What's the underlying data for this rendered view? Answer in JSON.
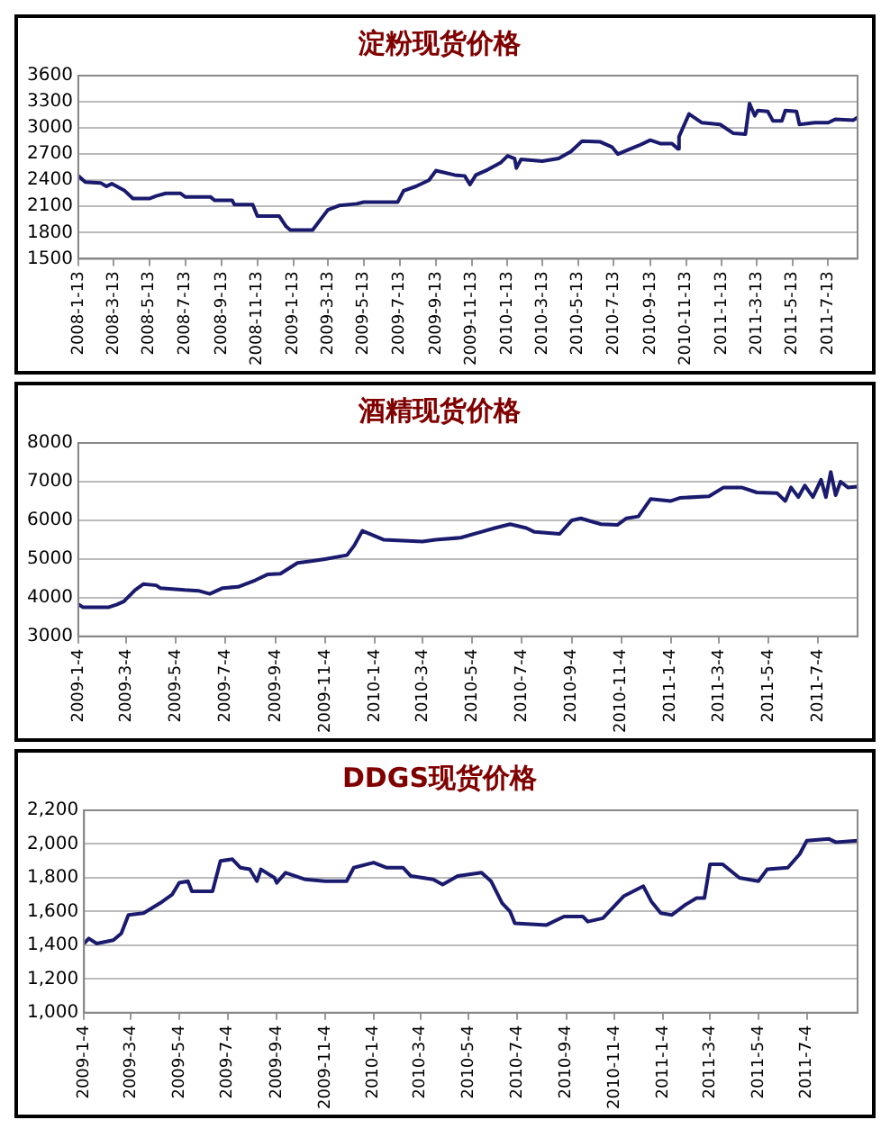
{
  "chart_data": [
    {
      "type": "line",
      "title": "淀粉现货价格",
      "grid": "y",
      "line_style": "solid",
      "legend": false,
      "xlim": [
        "2008-01-13",
        "2011-09-01"
      ],
      "ylim": [
        1500,
        3600
      ],
      "yticks": [
        1500,
        1800,
        2100,
        2400,
        2700,
        3000,
        3300,
        3600
      ],
      "xticks": [
        {
          "value": "2008-01-13",
          "label": "2008-1-13"
        },
        {
          "value": "2008-03-13",
          "label": "2008-3-13"
        },
        {
          "value": "2008-05-13",
          "label": "2008-5-13"
        },
        {
          "value": "2008-07-13",
          "label": "2008-7-13"
        },
        {
          "value": "2008-09-13",
          "label": "2008-9-13"
        },
        {
          "value": "2008-11-13",
          "label": "2008-11-13"
        },
        {
          "value": "2009-01-13",
          "label": "2009-1-13"
        },
        {
          "value": "2009-03-13",
          "label": "2009-3-13"
        },
        {
          "value": "2009-05-13",
          "label": "2009-5-13"
        },
        {
          "value": "2009-07-13",
          "label": "2009-7-13"
        },
        {
          "value": "2009-09-13",
          "label": "2009-9-13"
        },
        {
          "value": "2009-11-13",
          "label": "2009-11-13"
        },
        {
          "value": "2010-01-13",
          "label": "2010-1-13"
        },
        {
          "value": "2010-03-13",
          "label": "2010-3-13"
        },
        {
          "value": "2010-05-13",
          "label": "2010-5-13"
        },
        {
          "value": "2010-07-13",
          "label": "2010-7-13"
        },
        {
          "value": "2010-09-13",
          "label": "2010-9-13"
        },
        {
          "value": "2010-11-13",
          "label": "2010-11-13"
        },
        {
          "value": "2011-01-13",
          "label": "2011-1-13"
        },
        {
          "value": "2011-03-13",
          "label": "2011-3-13"
        },
        {
          "value": "2011-05-13",
          "label": "2011-5-13"
        },
        {
          "value": "2011-07-13",
          "label": "2011-7-13"
        }
      ],
      "series": [
        {
          "color": "#1a1a6e",
          "x": [
            "2008-01-13",
            "2008-01-25",
            "2008-02-20",
            "2008-03-01",
            "2008-03-10",
            "2008-04-01",
            "2008-04-15",
            "2008-05-13",
            "2008-05-25",
            "2008-06-10",
            "2008-07-05",
            "2008-07-13",
            "2008-08-25",
            "2008-09-01",
            "2008-10-01",
            "2008-10-05",
            "2008-11-05",
            "2008-11-13",
            "2008-12-20",
            "2009-01-01",
            "2009-01-08",
            "2009-02-15",
            "2009-03-13",
            "2009-04-01",
            "2009-05-01",
            "2009-05-13",
            "2009-07-10",
            "2009-07-20",
            "2009-08-10",
            "2009-09-01",
            "2009-09-13",
            "2009-10-15",
            "2009-11-01",
            "2009-11-10",
            "2009-11-20",
            "2009-12-10",
            "2010-01-01",
            "2010-01-13",
            "2010-01-25",
            "2010-01-28",
            "2010-02-05",
            "2010-03-13",
            "2010-04-10",
            "2010-05-01",
            "2010-05-20",
            "2010-06-20",
            "2010-07-10",
            "2010-07-20",
            "2010-08-10",
            "2010-08-25",
            "2010-09-13",
            "2010-10-01",
            "2010-10-20",
            "2010-10-30",
            "2010-11-01",
            "2010-11-18",
            "2010-12-10",
            "2011-01-10",
            "2011-02-01",
            "2011-02-22",
            "2011-03-01",
            "2011-03-10",
            "2011-03-15",
            "2011-04-01",
            "2011-04-10",
            "2011-04-25",
            "2011-05-01",
            "2011-05-20",
            "2011-05-25",
            "2011-06-20",
            "2011-07-13",
            "2011-07-25",
            "2011-08-25",
            "2011-09-01"
          ],
          "values": [
            2450,
            2380,
            2370,
            2330,
            2360,
            2280,
            2190,
            2190,
            2220,
            2250,
            2250,
            2210,
            2210,
            2170,
            2170,
            2120,
            2120,
            1990,
            1990,
            1870,
            1830,
            1830,
            2060,
            2110,
            2130,
            2150,
            2150,
            2280,
            2330,
            2400,
            2510,
            2460,
            2450,
            2350,
            2460,
            2520,
            2600,
            2680,
            2650,
            2540,
            2640,
            2620,
            2650,
            2730,
            2850,
            2840,
            2780,
            2700,
            2760,
            2800,
            2860,
            2820,
            2820,
            2760,
            2900,
            3160,
            3060,
            3040,
            2940,
            2930,
            3280,
            3140,
            3200,
            3190,
            3080,
            3080,
            3200,
            3190,
            3040,
            3060,
            3060,
            3100,
            3090,
            3120
          ]
        }
      ]
    },
    {
      "type": "line",
      "title": "酒精现货价格",
      "grid": "y",
      "line_style": "solid",
      "legend": false,
      "xlim": [
        "2009-01-04",
        "2011-08-22"
      ],
      "ylim": [
        3000,
        8000
      ],
      "yticks": [
        3000,
        4000,
        5000,
        6000,
        7000,
        8000
      ],
      "xticks": [
        {
          "value": "2009-01-04",
          "label": "2009-1-4"
        },
        {
          "value": "2009-03-04",
          "label": "2009-3-4"
        },
        {
          "value": "2009-05-04",
          "label": "2009-5-4"
        },
        {
          "value": "2009-07-04",
          "label": "2009-7-4"
        },
        {
          "value": "2009-09-04",
          "label": "2009-9-4"
        },
        {
          "value": "2009-11-04",
          "label": "2009-11-4"
        },
        {
          "value": "2010-01-04",
          "label": "2010-1-4"
        },
        {
          "value": "2010-03-04",
          "label": "2010-3-4"
        },
        {
          "value": "2010-05-04",
          "label": "2010-5-4"
        },
        {
          "value": "2010-07-04",
          "label": "2010-7-4"
        },
        {
          "value": "2010-09-04",
          "label": "2010-9-4"
        },
        {
          "value": "2010-11-04",
          "label": "2010-11-4"
        },
        {
          "value": "2011-01-04",
          "label": "2011-1-4"
        },
        {
          "value": "2011-03-04",
          "label": "2011-3-4"
        },
        {
          "value": "2011-05-04",
          "label": "2011-5-4"
        },
        {
          "value": "2011-07-04",
          "label": "2011-7-4"
        }
      ],
      "series": [
        {
          "color": "#1a1a6e",
          "x": [
            "2009-01-04",
            "2009-01-10",
            "2009-02-10",
            "2009-02-20",
            "2009-03-01",
            "2009-03-15",
            "2009-03-25",
            "2009-04-10",
            "2009-04-15",
            "2009-05-15",
            "2009-06-01",
            "2009-06-15",
            "2009-07-01",
            "2009-07-20",
            "2009-08-10",
            "2009-08-25",
            "2009-09-10",
            "2009-10-01",
            "2009-10-20",
            "2009-11-04",
            "2009-12-01",
            "2009-12-10",
            "2009-12-20",
            "2010-01-15",
            "2010-03-04",
            "2010-03-20",
            "2010-04-20",
            "2010-05-15",
            "2010-06-01",
            "2010-06-20",
            "2010-07-10",
            "2010-07-20",
            "2010-08-20",
            "2010-09-04",
            "2010-09-15",
            "2010-10-10",
            "2010-10-30",
            "2010-11-10",
            "2010-11-25",
            "2010-12-10",
            "2011-01-04",
            "2011-01-15",
            "2011-02-20",
            "2011-03-10",
            "2011-04-01",
            "2011-04-20",
            "2011-05-15",
            "2011-05-25",
            "2011-06-01",
            "2011-06-10",
            "2011-06-18",
            "2011-06-28",
            "2011-07-08",
            "2011-07-14",
            "2011-07-20",
            "2011-07-26",
            "2011-08-01",
            "2011-08-10",
            "2011-08-22"
          ],
          "values": [
            3830,
            3750,
            3750,
            3820,
            3900,
            4200,
            4350,
            4320,
            4250,
            4200,
            4180,
            4100,
            4250,
            4280,
            4450,
            4600,
            4620,
            4900,
            4950,
            5000,
            5100,
            5350,
            5730,
            5500,
            5450,
            5500,
            5550,
            5700,
            5800,
            5900,
            5800,
            5700,
            5650,
            6000,
            6050,
            5900,
            5880,
            6050,
            6100,
            6550,
            6500,
            6580,
            6620,
            6850,
            6850,
            6720,
            6700,
            6500,
            6850,
            6600,
            6900,
            6600,
            7050,
            6600,
            7250,
            6650,
            7000,
            6850,
            6870
          ]
        }
      ]
    },
    {
      "type": "line",
      "title": "DDGS现货价格",
      "grid": "y",
      "line_style": "solid",
      "legend": false,
      "xlim": [
        "2009-01-04",
        "2011-09-06"
      ],
      "ylim": [
        1000,
        2200
      ],
      "yticks": [
        {
          "value": 1000,
          "label": "1,000"
        },
        {
          "value": 1200,
          "label": "1,200"
        },
        {
          "value": 1400,
          "label": "1,400"
        },
        {
          "value": 1600,
          "label": "1,600"
        },
        {
          "value": 1800,
          "label": "1,800"
        },
        {
          "value": 2000,
          "label": "2,000"
        },
        {
          "value": 2200,
          "label": "2,200"
        }
      ],
      "xticks": [
        {
          "value": "2009-01-04",
          "label": "2009-1-4"
        },
        {
          "value": "2009-03-04",
          "label": "2009-3-4"
        },
        {
          "value": "2009-05-04",
          "label": "2009-5-4"
        },
        {
          "value": "2009-07-04",
          "label": "2009-7-4"
        },
        {
          "value": "2009-09-04",
          "label": "2009-9-4"
        },
        {
          "value": "2009-11-04",
          "label": "2009-11-4"
        },
        {
          "value": "2010-01-04",
          "label": "2010-1-4"
        },
        {
          "value": "2010-03-04",
          "label": "2010-3-4"
        },
        {
          "value": "2010-05-04",
          "label": "2010-5-4"
        },
        {
          "value": "2010-07-04",
          "label": "2010-7-4"
        },
        {
          "value": "2010-09-04",
          "label": "2010-9-4"
        },
        {
          "value": "2010-11-04",
          "label": "2010-11-4"
        },
        {
          "value": "2011-01-04",
          "label": "2011-1-4"
        },
        {
          "value": "2011-03-04",
          "label": "2011-3-4"
        },
        {
          "value": "2011-05-04",
          "label": "2011-5-4"
        },
        {
          "value": "2011-07-04",
          "label": "2011-7-4"
        }
      ],
      "series": [
        {
          "color": "#1a1a6e",
          "x": [
            "2009-01-04",
            "2009-01-10",
            "2009-01-20",
            "2009-02-10",
            "2009-02-20",
            "2009-03-01",
            "2009-03-20",
            "2009-04-10",
            "2009-04-25",
            "2009-05-04",
            "2009-05-15",
            "2009-05-20",
            "2009-06-15",
            "2009-06-25",
            "2009-07-10",
            "2009-07-20",
            "2009-08-01",
            "2009-08-10",
            "2009-08-15",
            "2009-09-01",
            "2009-09-04",
            "2009-09-15",
            "2009-10-10",
            "2009-11-04",
            "2009-12-01",
            "2009-12-10",
            "2010-01-04",
            "2010-01-20",
            "2010-02-10",
            "2010-02-20",
            "2010-03-20",
            "2010-04-01",
            "2010-04-20",
            "2010-05-20",
            "2010-06-01",
            "2010-06-15",
            "2010-06-25",
            "2010-07-01",
            "2010-08-10",
            "2010-09-01",
            "2010-09-25",
            "2010-10-01",
            "2010-10-20",
            "2010-11-15",
            "2010-12-10",
            "2010-12-20",
            "2011-01-01",
            "2011-01-15",
            "2011-02-01",
            "2011-02-15",
            "2011-02-25",
            "2011-03-04",
            "2011-03-20",
            "2011-04-10",
            "2011-05-04",
            "2011-05-15",
            "2011-06-10",
            "2011-06-25",
            "2011-07-04",
            "2011-08-01",
            "2011-08-10",
            "2011-09-06"
          ],
          "values": [
            1410,
            1440,
            1410,
            1430,
            1470,
            1580,
            1590,
            1650,
            1700,
            1770,
            1780,
            1720,
            1720,
            1900,
            1910,
            1860,
            1850,
            1780,
            1850,
            1800,
            1770,
            1830,
            1790,
            1780,
            1780,
            1860,
            1890,
            1860,
            1860,
            1810,
            1790,
            1760,
            1810,
            1830,
            1780,
            1650,
            1600,
            1530,
            1520,
            1570,
            1570,
            1540,
            1560,
            1690,
            1750,
            1660,
            1590,
            1580,
            1640,
            1680,
            1680,
            1880,
            1880,
            1800,
            1780,
            1850,
            1860,
            1940,
            2020,
            2030,
            2010,
            2020
          ]
        }
      ]
    }
  ]
}
